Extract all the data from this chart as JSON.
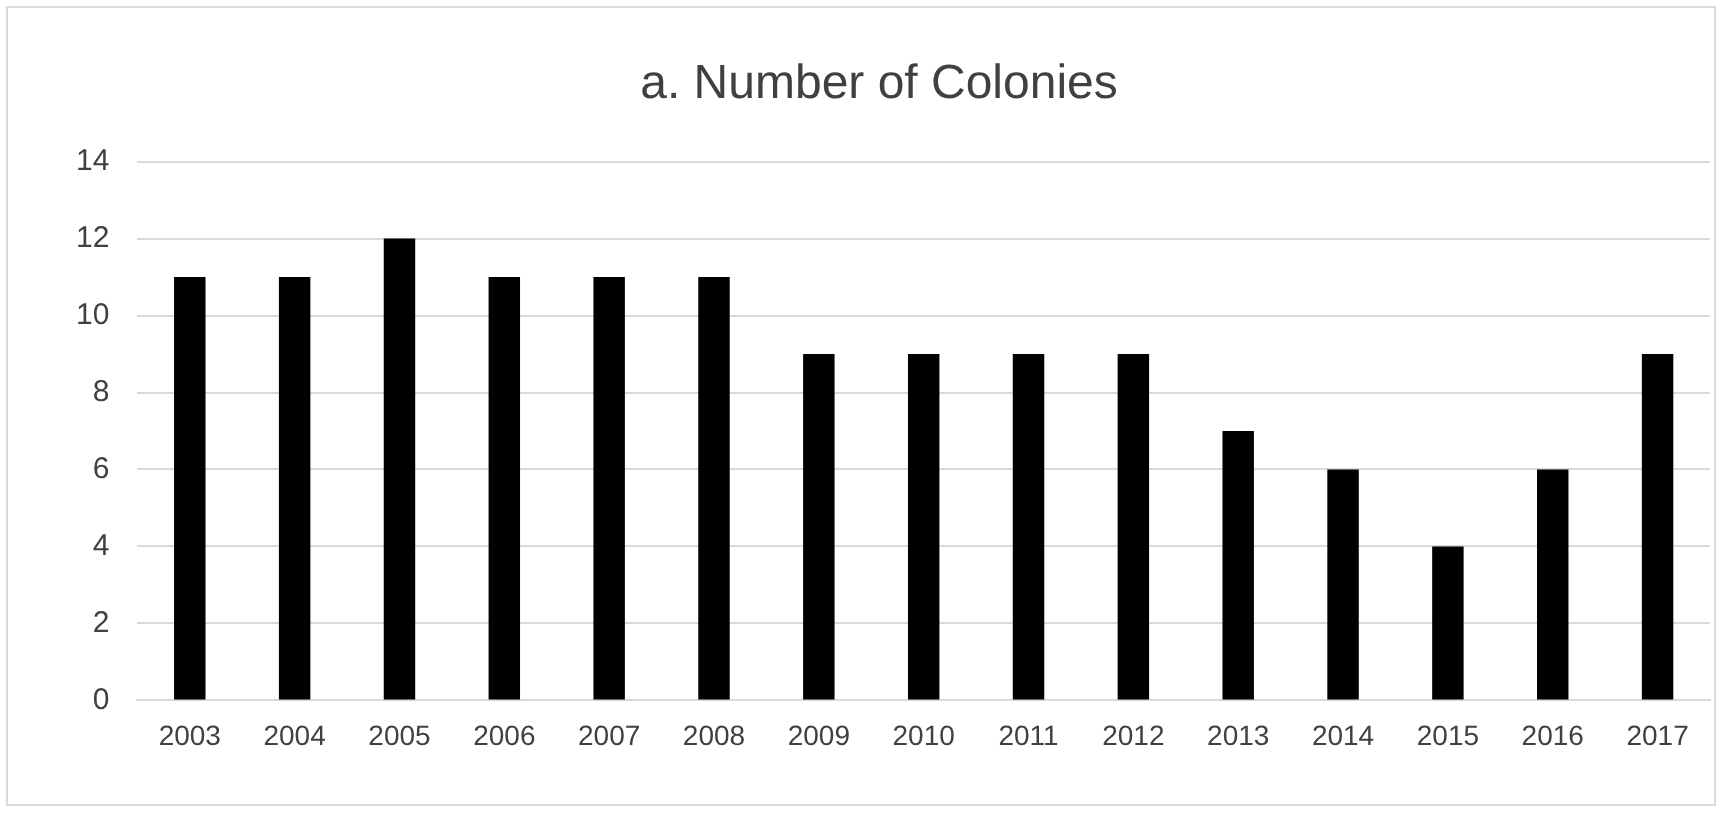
{
  "chart_data": {
    "type": "bar",
    "title": "a. Number of Colonies",
    "categories": [
      "2003",
      "2004",
      "2005",
      "2006",
      "2007",
      "2008",
      "2009",
      "2010",
      "2011",
      "2012",
      "2013",
      "2014",
      "2015",
      "2016",
      "2017"
    ],
    "values": [
      11,
      11,
      12,
      11,
      11,
      11,
      9,
      9,
      9,
      9,
      7,
      6,
      4,
      6,
      9
    ],
    "color": "#000000",
    "ylim": [
      0,
      14
    ],
    "yticks": [
      0,
      2,
      4,
      6,
      8,
      10,
      12,
      14
    ],
    "grid": "y",
    "legend": false
  }
}
